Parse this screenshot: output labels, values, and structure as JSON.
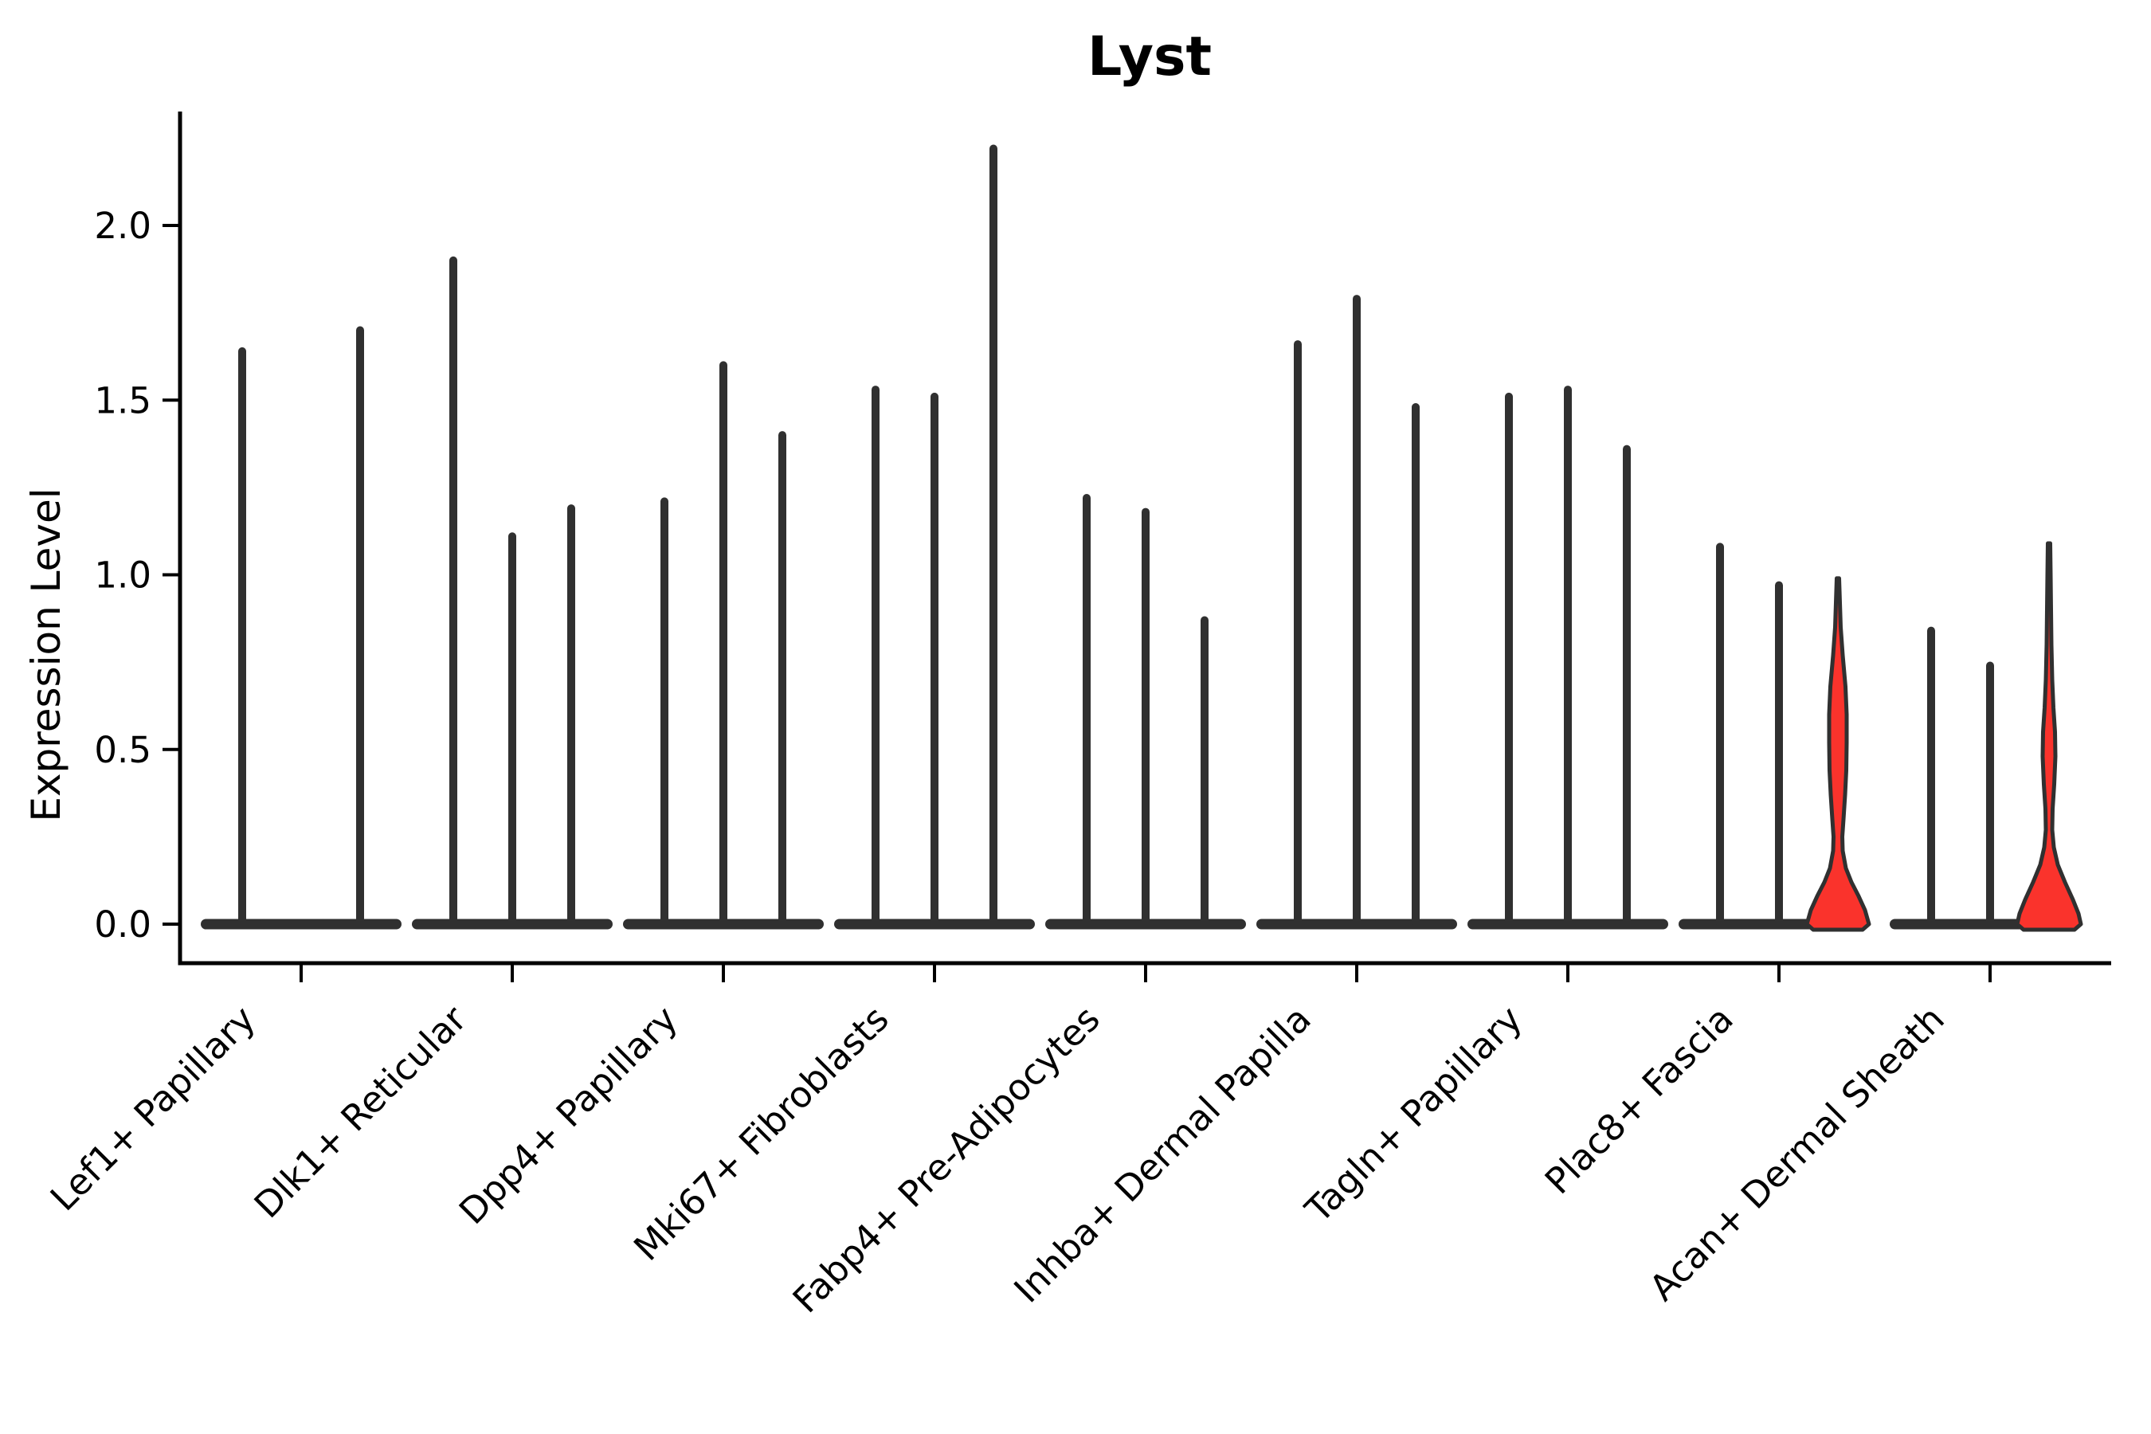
{
  "chart_data": {
    "type": "violin",
    "title": "Lyst",
    "ylabel": "Expression Level",
    "background": "#ffffff",
    "text_color": "#000000",
    "axis_color": "#000000",
    "violin_color": "#303030",
    "highlight_fill": "#fa332c",
    "ytick_labels": [
      "0.0",
      "0.5",
      "1.0",
      "1.5",
      "2.0"
    ],
    "ytick_values": [
      0.0,
      0.5,
      1.0,
      1.5,
      2.0
    ],
    "ylim": [
      0,
      2.33
    ],
    "legend": "none",
    "grid": "off",
    "violins_per_category": 3,
    "categories": [
      "Lef1+ Papillary",
      "Dlk1+ Reticular",
      "Dpp4+ Papillary",
      "Mki67+ Fibroblasts",
      "Fabp4+ Pre-Adipocytes",
      "Inhba+ Dermal Papilla",
      "Tagln+ Papillary",
      "Plac8+ Fascia",
      "Acan+ Dermal Sheath"
    ],
    "groups": [
      {
        "category": "Lef1+ Papillary",
        "violin_max": [
          1.64,
          0.0,
          1.7
        ]
      },
      {
        "category": "Dlk1+ Reticular",
        "violin_max": [
          1.9,
          1.11,
          1.19
        ]
      },
      {
        "category": "Dpp4+ Papillary",
        "violin_max": [
          1.21,
          1.6,
          1.4
        ]
      },
      {
        "category": "Mki67+ Fibroblasts",
        "violin_max": [
          1.53,
          1.51,
          2.22
        ]
      },
      {
        "category": "Fabp4+ Pre-Adipocytes",
        "violin_max": [
          1.22,
          1.18,
          0.87
        ]
      },
      {
        "category": "Inhba+ Dermal Papilla",
        "violin_max": [
          1.66,
          1.79,
          1.48
        ]
      },
      {
        "category": "Tagln+ Papillary",
        "violin_max": [
          1.51,
          1.53,
          1.36
        ]
      },
      {
        "category": "Plac8+ Fascia",
        "violin_max": [
          1.08,
          0.97,
          0.99
        ],
        "highlight_violin": 2,
        "highlight_profile": [
          [
            0.99,
            1.5
          ],
          [
            0.92,
            2.5
          ],
          [
            0.85,
            3.5
          ],
          [
            0.77,
            6
          ],
          [
            0.68,
            9.5
          ],
          [
            0.6,
            11
          ],
          [
            0.52,
            11
          ],
          [
            0.44,
            10.5
          ],
          [
            0.37,
            9
          ],
          [
            0.3,
            7
          ],
          [
            0.25,
            5.5
          ],
          [
            0.21,
            6
          ],
          [
            0.16,
            10
          ],
          [
            0.12,
            17
          ],
          [
            0.08,
            26
          ],
          [
            0.04,
            34
          ],
          [
            0.0,
            39
          ]
        ]
      },
      {
        "category": "Acan+ Dermal Sheath",
        "violin_max": [
          0.84,
          0.74,
          1.09
        ],
        "highlight_violin": 2,
        "highlight_profile": [
          [
            1.09,
            1.5
          ],
          [
            1.0,
            2
          ],
          [
            0.9,
            2.5
          ],
          [
            0.8,
            3
          ],
          [
            0.7,
            4
          ],
          [
            0.62,
            5.5
          ],
          [
            0.55,
            7.5
          ],
          [
            0.48,
            8
          ],
          [
            0.4,
            6.5
          ],
          [
            0.33,
            4.5
          ],
          [
            0.27,
            4
          ],
          [
            0.22,
            6
          ],
          [
            0.17,
            11
          ],
          [
            0.12,
            20
          ],
          [
            0.07,
            30
          ],
          [
            0.03,
            37
          ],
          [
            0.0,
            40
          ]
        ]
      }
    ]
  }
}
